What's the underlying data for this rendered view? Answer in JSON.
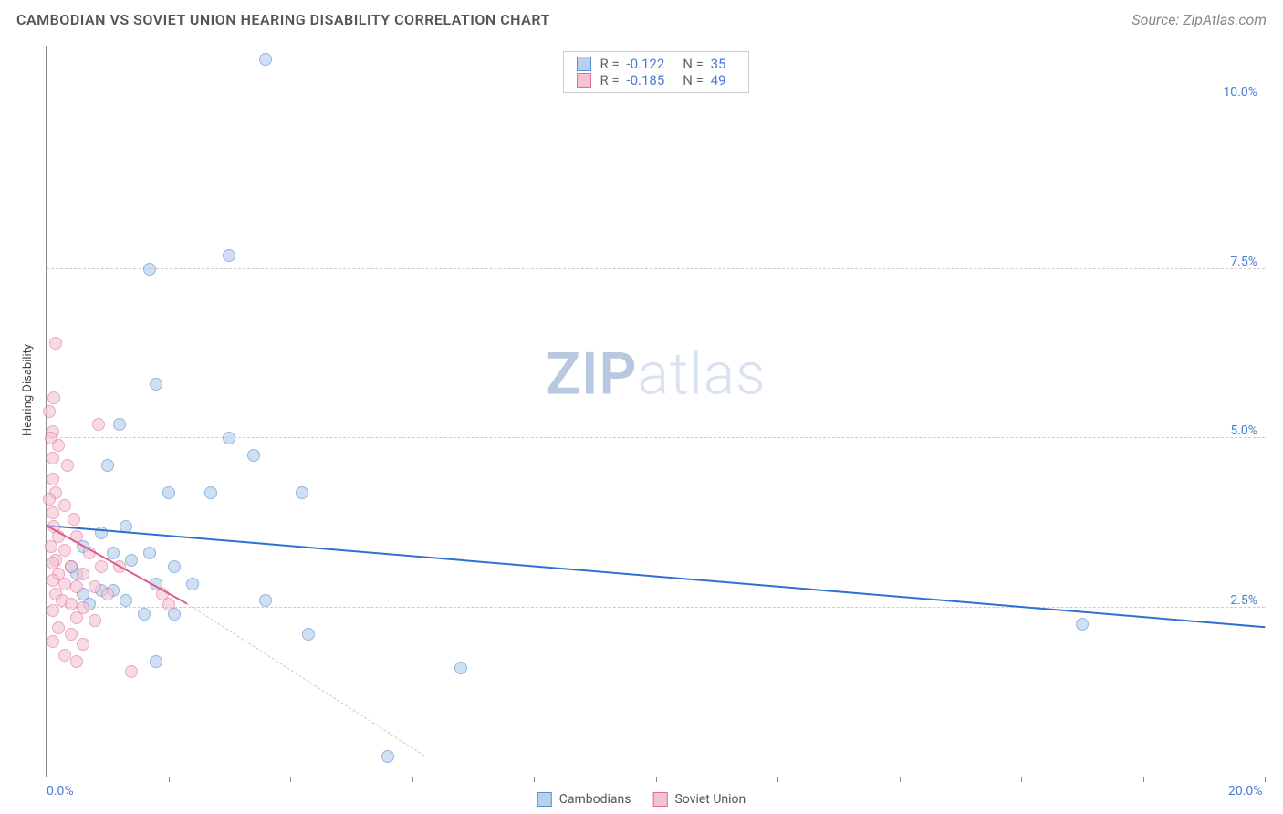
{
  "title": "CAMBODIAN VS SOVIET UNION HEARING DISABILITY CORRELATION CHART",
  "source": "Source: ZipAtlas.com",
  "watermark_bold": "ZIP",
  "watermark_light": "atlas",
  "ylabel": "Hearing Disability",
  "chart": {
    "type": "scatter",
    "xlim": [
      0,
      20
    ],
    "ylim": [
      0,
      10.8
    ],
    "x_ticks": [
      0,
      2,
      4,
      6,
      8,
      10,
      12,
      14,
      16,
      18,
      20
    ],
    "x_tick_labels": {
      "0": "0.0%",
      "20": "20.0%"
    },
    "y_gridlines": [
      2.5,
      5.0,
      7.5,
      10.0
    ],
    "y_tick_labels": [
      "2.5%",
      "5.0%",
      "7.5%",
      "10.0%"
    ],
    "background_color": "#ffffff",
    "grid_color": "#cccccc",
    "axis_color": "#888888",
    "tick_label_color": "#4a7bd0",
    "marker_radius": 7,
    "marker_border_width": 1,
    "series": [
      {
        "name": "Cambodians",
        "fill": "#b8d1ee",
        "stroke": "#5a8fd6",
        "fill_opacity": 0.65,
        "R": "-0.122",
        "N": "35",
        "trend": {
          "x1": 0,
          "y1": 3.7,
          "x2": 20,
          "y2": 2.2,
          "color": "#2f6fd0",
          "width": 2
        },
        "points": [
          [
            3.6,
            10.6
          ],
          [
            3.0,
            7.7
          ],
          [
            1.7,
            7.5
          ],
          [
            1.8,
            5.8
          ],
          [
            1.2,
            5.2
          ],
          [
            3.0,
            5.0
          ],
          [
            3.4,
            4.75
          ],
          [
            1.0,
            4.6
          ],
          [
            2.0,
            4.2
          ],
          [
            2.7,
            4.2
          ],
          [
            4.2,
            4.2
          ],
          [
            1.3,
            3.7
          ],
          [
            0.6,
            3.4
          ],
          [
            1.1,
            3.3
          ],
          [
            1.7,
            3.3
          ],
          [
            2.1,
            3.1
          ],
          [
            0.5,
            3.0
          ],
          [
            0.9,
            2.75
          ],
          [
            1.1,
            2.75
          ],
          [
            1.8,
            2.85
          ],
          [
            2.4,
            2.85
          ],
          [
            1.3,
            2.6
          ],
          [
            3.6,
            2.6
          ],
          [
            0.7,
            2.55
          ],
          [
            1.6,
            2.4
          ],
          [
            2.1,
            2.4
          ],
          [
            4.3,
            2.1
          ],
          [
            1.8,
            1.7
          ],
          [
            6.8,
            1.6
          ],
          [
            17.0,
            2.25
          ],
          [
            5.6,
            0.3
          ],
          [
            0.4,
            3.1
          ],
          [
            0.9,
            3.6
          ],
          [
            1.4,
            3.2
          ],
          [
            0.6,
            2.7
          ]
        ]
      },
      {
        "name": "Soviet Union",
        "fill": "#f4c3d3",
        "stroke": "#e36b9a",
        "fill_opacity": 0.6,
        "R": "-0.185",
        "N": "49",
        "trend": {
          "x1": 0,
          "y1": 3.7,
          "x2": 2.3,
          "y2": 2.55,
          "color": "#e05a8a",
          "width": 2
        },
        "trend_dash": {
          "x1": 2.3,
          "y1": 2.55,
          "x2": 6.2,
          "y2": 0.3,
          "color": "#f1b6c9"
        },
        "points": [
          [
            0.15,
            6.4
          ],
          [
            0.12,
            5.6
          ],
          [
            0.05,
            5.4
          ],
          [
            0.85,
            5.2
          ],
          [
            0.1,
            5.1
          ],
          [
            0.08,
            5.0
          ],
          [
            0.2,
            4.9
          ],
          [
            0.1,
            4.7
          ],
          [
            0.35,
            4.6
          ],
          [
            0.1,
            4.4
          ],
          [
            0.15,
            4.2
          ],
          [
            0.05,
            4.1
          ],
          [
            0.3,
            4.0
          ],
          [
            0.1,
            3.9
          ],
          [
            0.45,
            3.8
          ],
          [
            0.12,
            3.7
          ],
          [
            0.2,
            3.55
          ],
          [
            0.5,
            3.55
          ],
          [
            0.08,
            3.4
          ],
          [
            0.3,
            3.35
          ],
          [
            0.7,
            3.3
          ],
          [
            0.15,
            3.2
          ],
          [
            0.1,
            3.15
          ],
          [
            0.4,
            3.1
          ],
          [
            0.9,
            3.1
          ],
          [
            1.2,
            3.1
          ],
          [
            0.2,
            3.0
          ],
          [
            0.6,
            3.0
          ],
          [
            0.1,
            2.9
          ],
          [
            0.3,
            2.85
          ],
          [
            0.5,
            2.8
          ],
          [
            0.8,
            2.8
          ],
          [
            0.15,
            2.7
          ],
          [
            1.0,
            2.7
          ],
          [
            1.9,
            2.7
          ],
          [
            0.25,
            2.6
          ],
          [
            0.4,
            2.55
          ],
          [
            0.6,
            2.5
          ],
          [
            2.0,
            2.55
          ],
          [
            0.1,
            2.45
          ],
          [
            0.5,
            2.35
          ],
          [
            0.8,
            2.3
          ],
          [
            0.2,
            2.2
          ],
          [
            0.4,
            2.1
          ],
          [
            0.1,
            2.0
          ],
          [
            0.6,
            1.95
          ],
          [
            1.4,
            1.55
          ],
          [
            0.3,
            1.8
          ],
          [
            0.5,
            1.7
          ]
        ]
      }
    ]
  },
  "legend": {
    "items": [
      "Cambodians",
      "Soviet Union"
    ]
  }
}
